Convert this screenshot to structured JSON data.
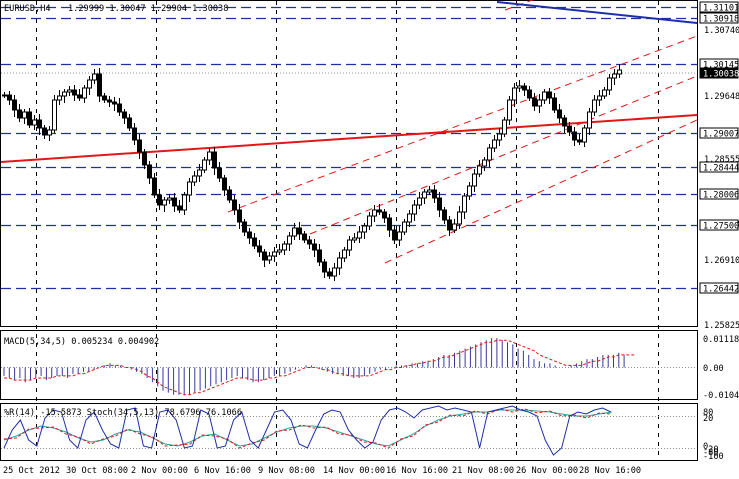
{
  "header": {
    "symbol": "EURUSD,H4",
    "ohlc": "1.29999 1.30047 1.29904 1.30038"
  },
  "colors": {
    "background": "#ffffff",
    "candles": "#000000",
    "blue_levels": "#1f2fa8",
    "red_trendline": "#e01818",
    "blue_trendline": "#1f2fa8",
    "macd_signal": "#e01818",
    "stoch_main": "#1f2fa8",
    "stoch_signal": "#2aa8a0",
    "stoch_slow": "#e01818"
  },
  "price_axis": {
    "labels": [
      "1.30740",
      "1.29648",
      "1.28555",
      "1.27463",
      "1.26910",
      "1.25825"
    ],
    "boxed_levels": [
      "1.31101",
      "1.30918",
      "1.30145",
      "1.30038",
      "1.29007",
      "1.28444",
      "1.28006",
      "1.27500",
      "1.26442"
    ]
  },
  "macd": {
    "caption": "MACD(5,34,5) 0.005234 0.004902",
    "axis_labels": [
      "0.011186",
      "0.00",
      "-0.01045"
    ],
    "histogram": [
      -4,
      -5,
      -6,
      -5,
      -7,
      -6,
      -5,
      -4,
      -6,
      -5,
      -4,
      -4,
      -5,
      -3,
      -3,
      -2,
      -2,
      -1,
      0,
      1,
      2,
      1,
      1,
      0,
      -1,
      -2,
      -3,
      -5,
      -7,
      -9,
      -11,
      -12,
      -13,
      -13,
      -13,
      -13,
      -12,
      -11,
      -10,
      -9,
      -8,
      -7,
      -6,
      -5,
      -4,
      -5,
      -6,
      -7,
      -7,
      -6,
      -5,
      -4,
      -4,
      -3,
      -2,
      -1,
      0,
      1,
      1,
      0,
      -1,
      -2,
      -3,
      -3,
      -4,
      -4,
      -5,
      -5,
      -4,
      -3,
      -2,
      -1,
      -1,
      0,
      1,
      1,
      1,
      2,
      2,
      3,
      3,
      4,
      5,
      6,
      6,
      7,
      8,
      9,
      10,
      11,
      12,
      13,
      14,
      14,
      13,
      12,
      11,
      9,
      8,
      6,
      4,
      3,
      2,
      2,
      1,
      0,
      0,
      1,
      2,
      3,
      4,
      4,
      5,
      6,
      6,
      6,
      7,
      6
    ],
    "signal": [
      -5,
      -5,
      -6,
      -6,
      -6,
      -6,
      -5,
      -5,
      -5,
      -5,
      -4,
      -4,
      -4,
      -4,
      -3,
      -3,
      -2,
      -1,
      0,
      1,
      1,
      1,
      1,
      0,
      0,
      -1,
      -2,
      -4,
      -5,
      -7,
      -9,
      -10,
      -11,
      -12,
      -13,
      -13,
      -12,
      -12,
      -11,
      -10,
      -9,
      -8,
      -7,
      -6,
      -5,
      -5,
      -5,
      -6,
      -6,
      -6,
      -5,
      -5,
      -4,
      -4,
      -3,
      -2,
      -1,
      0,
      0,
      0,
      -1,
      -1,
      -2,
      -3,
      -3,
      -4,
      -4,
      -4,
      -4,
      -4,
      -3,
      -2,
      -1,
      -1,
      0,
      0,
      1,
      1,
      2,
      2,
      3,
      3,
      4,
      5,
      5,
      6,
      7,
      8,
      9,
      10,
      11,
      12,
      12,
      13,
      13,
      13,
      12,
      11,
      10,
      9,
      8,
      6,
      5,
      4,
      3,
      2,
      1,
      1,
      1,
      1,
      2,
      3,
      3,
      4,
      5,
      5,
      6,
      6,
      6,
      6
    ]
  },
  "stoch": {
    "caption": "%R(14) -15.5873  Stoch(34,5,13) 78.6796 76.1066",
    "axis_labels": [
      "80",
      "20",
      "0",
      "-20",
      "-80",
      "-100"
    ]
  },
  "time_axis": {
    "labels": [
      "25 Oct 2012",
      "30 Oct 08:00",
      "2 Nov 00:00",
      "6 Nov 16:00",
      "9 Nov 08:00",
      "14 Nov 00:00",
      "16 Nov 16:00",
      "21 Nov 08:00",
      "26 Nov 00:00",
      "28 Nov 16:00"
    ]
  }
}
